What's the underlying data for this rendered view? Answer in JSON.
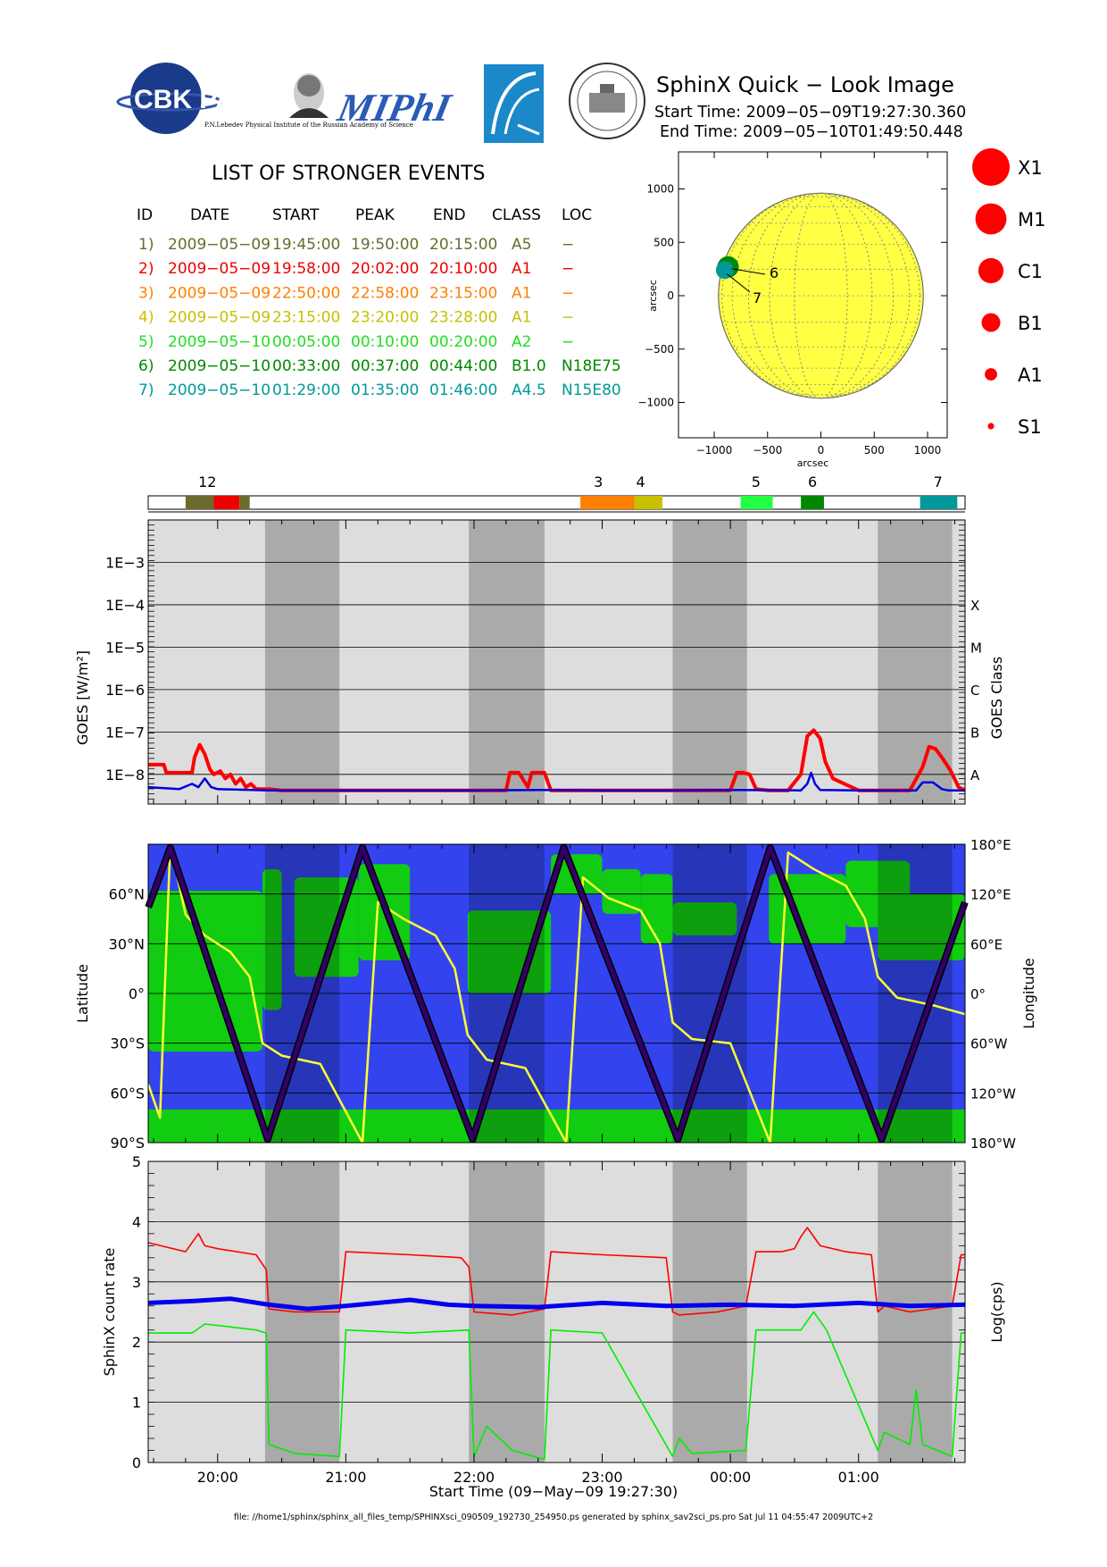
{
  "header": {
    "logos": [
      "CBK PAN",
      "P.N.Lebedev Physical Institute of the Russian Academy of Science",
      "MIPhI",
      "",
      ""
    ],
    "title": "SphinX Quick − Look Image",
    "start_time": "Start Time: 2009−05−09T19:27:30.360",
    "end_time": "End Time: 2009−05−10T01:49:50.448"
  },
  "events": {
    "heading": "LIST OF STRONGER EVENTS",
    "columns": [
      "ID",
      "DATE",
      "START",
      "PEAK",
      "END",
      "CLASS",
      "LOC"
    ],
    "rows": [
      {
        "id": "1)",
        "date": "2009−05−09",
        "start": "19:45:00",
        "peak": "19:50:00",
        "end": "20:15:00",
        "class": "A5",
        "loc": "−",
        "color": "#6b6b2e"
      },
      {
        "id": "2)",
        "date": "2009−05−09",
        "start": "19:58:00",
        "peak": "20:02:00",
        "end": "20:10:00",
        "class": "A1",
        "loc": "−",
        "color": "#ee0000"
      },
      {
        "id": "3)",
        "date": "2009−05−09",
        "start": "22:50:00",
        "peak": "22:58:00",
        "end": "23:15:00",
        "class": "A1",
        "loc": "−",
        "color": "#ff7f00"
      },
      {
        "id": "4)",
        "date": "2009−05−09",
        "start": "23:15:00",
        "peak": "23:20:00",
        "end": "23:28:00",
        "class": "A1",
        "loc": "−",
        "color": "#c8c000"
      },
      {
        "id": "5)",
        "date": "2009−05−10",
        "start": "00:05:00",
        "peak": "00:10:00",
        "end": "00:20:00",
        "class": "A2",
        "loc": "−",
        "color": "#22dd22"
      },
      {
        "id": "6)",
        "date": "2009−05−10",
        "start": "00:33:00",
        "peak": "00:37:00",
        "end": "00:44:00",
        "class": "B1.0",
        "loc": "N18E75",
        "color": "#008800"
      },
      {
        "id": "7)",
        "date": "2009−05−10",
        "start": "01:29:00",
        "peak": "01:35:00",
        "end": "01:46:00",
        "class": "A4.5",
        "loc": "N15E80",
        "color": "#009999"
      }
    ]
  },
  "sun_map": {
    "xlabel": "arcsec",
    "ylabel": "arcsec",
    "ticks": [
      -1000,
      -500,
      0,
      500,
      1000
    ],
    "tick_labels": [
      "−1000",
      "−500",
      "0",
      "500",
      "1000"
    ],
    "disk_color": "#ffff44",
    "markers": [
      {
        "label": "6",
        "x": -870,
        "y": 270,
        "color": "#008800"
      },
      {
        "label": "7",
        "x": -900,
        "y": 240,
        "color": "#009999"
      }
    ]
  },
  "size_legend": [
    {
      "label": "X1",
      "r": 1.0
    },
    {
      "label": "M1",
      "r": 0.83
    },
    {
      "label": "C1",
      "r": 0.67
    },
    {
      "label": "B1",
      "r": 0.5
    },
    {
      "label": "A1",
      "r": 0.33
    },
    {
      "label": "S1",
      "r": 0.17
    }
  ],
  "timeline": {
    "start_hours": 19.4583,
    "end_hours": 25.8306,
    "labels": [
      {
        "text": "12",
        "t": 19.92
      },
      {
        "text": "3",
        "t": 22.97
      },
      {
        "text": "4",
        "t": 23.3
      },
      {
        "text": "5",
        "t": 24.2
      },
      {
        "text": "6",
        "t": 24.64
      },
      {
        "text": "7",
        "t": 25.62
      }
    ],
    "bars": [
      {
        "t0": 19.75,
        "t1": 19.97,
        "color": "#6b6b2e"
      },
      {
        "t0": 19.97,
        "t1": 20.17,
        "color": "#ee0000"
      },
      {
        "t0": 20.17,
        "t1": 20.25,
        "color": "#6b6b2e"
      },
      {
        "t0": 22.83,
        "t1": 23.25,
        "color": "#ff7f00"
      },
      {
        "t0": 23.25,
        "t1": 23.47,
        "color": "#c8c000"
      },
      {
        "t0": 24.08,
        "t1": 24.33,
        "color": "#22ff44"
      },
      {
        "t0": 24.55,
        "t1": 24.73,
        "color": "#008800"
      },
      {
        "t0": 25.48,
        "t1": 25.77,
        "color": "#009999"
      }
    ]
  },
  "night_bands": [
    [
      20.37,
      20.95
    ],
    [
      21.96,
      22.55
    ],
    [
      23.55,
      24.13
    ],
    [
      25.15,
      25.73
    ]
  ],
  "chart_data": [
    {
      "type": "line",
      "title": "",
      "xlabel": "",
      "ylabel": "GOES [W/m²]",
      "y2label": "GOES Class",
      "y_scale": "log",
      "ylim": [
        2e-09,
        0.01
      ],
      "xlim_hours": [
        19.4583,
        25.8306
      ],
      "ytick_labels": [
        "1E−8",
        "1E−7",
        "1E−6",
        "1E−5",
        "1E−4",
        "1E−3"
      ],
      "ytick_values": [
        1e-08,
        1e-07,
        1e-06,
        1e-05,
        0.0001,
        0.001
      ],
      "class_labels": [
        {
          "text": "A",
          "value": 1e-08
        },
        {
          "text": "B",
          "value": 1e-07
        },
        {
          "text": "C",
          "value": 1e-06
        },
        {
          "text": "M",
          "value": 1e-05
        },
        {
          "text": "X",
          "value": 0.0001
        }
      ],
      "series": [
        {
          "color": "#ff0000",
          "x": [
            19.46,
            19.58,
            19.6,
            19.8,
            19.82,
            19.86,
            19.9,
            19.94,
            19.97,
            20.02,
            20.06,
            20.1,
            20.14,
            20.18,
            20.22,
            20.26,
            20.3,
            20.4,
            20.5,
            21.0,
            21.5,
            22.25,
            22.28,
            22.35,
            22.42,
            22.45,
            22.55,
            22.6,
            23.0,
            23.5,
            24.0,
            24.05,
            24.1,
            24.15,
            24.2,
            24.3,
            24.45,
            24.55,
            24.6,
            24.65,
            24.7,
            24.74,
            24.8,
            25.0,
            25.4,
            25.5,
            25.55,
            25.6,
            25.65,
            25.72,
            25.78,
            25.83
          ],
          "y": [
            1.7e-08,
            1.7e-08,
            1.1e-08,
            1.1e-08,
            2.5e-08,
            5e-08,
            3e-08,
            1.3e-08,
            1e-08,
            1.2e-08,
            8e-09,
            1e-08,
            6e-09,
            8e-09,
            5e-09,
            6e-09,
            4.5e-09,
            4.5e-09,
            4.2e-09,
            4.2e-09,
            4.2e-09,
            4.2e-09,
            1.1e-08,
            1.1e-08,
            5e-09,
            1.1e-08,
            1.1e-08,
            4.2e-09,
            4.2e-09,
            4.2e-09,
            4.2e-09,
            1.1e-08,
            1.1e-08,
            1e-08,
            4.5e-09,
            4.2e-09,
            4.2e-09,
            1e-08,
            8e-08,
            1.1e-07,
            7e-08,
            2e-08,
            8e-09,
            4.2e-09,
            4.2e-09,
            1.5e-08,
            4.5e-08,
            4e-08,
            2.5e-08,
            1.2e-08,
            5e-09,
            4.2e-09
          ]
        },
        {
          "color": "#0000dd",
          "x": [
            19.46,
            19.7,
            19.8,
            19.85,
            19.9,
            19.95,
            20.0,
            20.4,
            21.0,
            22.0,
            22.5,
            23.0,
            23.5,
            24.0,
            24.55,
            24.6,
            24.63,
            24.66,
            24.7,
            25.0,
            25.45,
            25.5,
            25.58,
            25.65,
            25.7,
            25.83
          ],
          "y": [
            5e-09,
            4.5e-09,
            6e-09,
            5e-09,
            8e-09,
            5e-09,
            4.5e-09,
            4.2e-09,
            4.2e-09,
            4.2e-09,
            4.3e-09,
            4.2e-09,
            4.2e-09,
            4.3e-09,
            4.2e-09,
            6e-09,
            1.1e-08,
            6e-09,
            4.3e-09,
            4.2e-09,
            4.2e-09,
            6.5e-09,
            6.5e-09,
            4.5e-09,
            4.2e-09,
            4.2e-09
          ]
        }
      ]
    },
    {
      "type": "line",
      "title": "",
      "xlabel": "",
      "ylabel": "Latitude",
      "y2label": "Longitude",
      "ylim": [
        -90,
        90
      ],
      "y2lim": [
        -180,
        180
      ],
      "xlim_hours": [
        19.4583,
        25.8306
      ],
      "ytick_labels": [
        "90°S",
        "60°S",
        "30°S",
        "0°",
        "30°N",
        "60°N"
      ],
      "ytick_values": [
        -90,
        -60,
        -30,
        0,
        30,
        60
      ],
      "y2tick_labels": [
        "180°W",
        "120°W",
        "60°W",
        "0°",
        "60°E",
        "120°E",
        "180°E"
      ],
      "y2tick_values": [
        -180,
        -120,
        -60,
        0,
        60,
        120,
        180
      ],
      "background_colors": {
        "ocean": "#3344ee",
        "land": "#11cc11",
        "night_ocean": "#2233bb",
        "night_land": "#119911"
      },
      "track": {
        "color": "#330066",
        "x": [
          19.46,
          19.63,
          20.39,
          21.13,
          21.99,
          22.7,
          23.59,
          24.31,
          25.18,
          25.83
        ],
        "y": [
          52,
          88,
          -88,
          88,
          -88,
          88,
          -88,
          88,
          -88,
          55
        ]
      },
      "longitude": {
        "color": "#ffff33",
        "x": [
          19.46,
          19.55,
          19.63,
          19.75,
          19.9,
          20.1,
          20.25,
          20.35,
          20.5,
          20.8,
          21.13,
          21.25,
          21.45,
          21.7,
          21.85,
          21.95,
          22.1,
          22.4,
          22.72,
          22.85,
          23.05,
          23.3,
          23.45,
          23.55,
          23.7,
          24.0,
          24.31,
          24.45,
          24.65,
          24.9,
          25.05,
          25.15,
          25.3,
          25.6,
          25.83
        ],
        "y": [
          -110,
          -150,
          180,
          95,
          70,
          50,
          20,
          -60,
          -75,
          -85,
          -180,
          110,
          90,
          70,
          30,
          -50,
          -80,
          -90,
          -180,
          140,
          115,
          100,
          60,
          -35,
          -55,
          -60,
          -180,
          170,
          150,
          130,
          90,
          20,
          -5,
          -15,
          -25
        ]
      }
    },
    {
      "type": "line",
      "title": "",
      "xlabel": "Start Time (09−May−09 19:27:30)",
      "ylabel": "SphinX count rate",
      "y2label": "Log(cps)",
      "ylim": [
        0,
        5
      ],
      "xlim_hours": [
        19.4583,
        25.8306
      ],
      "ytick_labels": [
        "0",
        "1",
        "2",
        "3",
        "4",
        "5"
      ],
      "ytick_values": [
        0,
        1,
        2,
        3,
        4,
        5
      ],
      "xtick_labels": [
        "20:00",
        "21:00",
        "22:00",
        "23:00",
        "00:00",
        "01:00"
      ],
      "xtick_values": [
        20,
        21,
        22,
        23,
        24,
        25
      ],
      "series": [
        {
          "color": "#ff0000",
          "x": [
            19.46,
            19.75,
            19.85,
            19.9,
            20.0,
            20.3,
            20.38,
            20.4,
            20.6,
            20.95,
            21.0,
            21.5,
            21.9,
            21.96,
            22.0,
            22.3,
            22.55,
            22.6,
            23.0,
            23.5,
            23.55,
            23.6,
            23.9,
            24.12,
            24.2,
            24.4,
            24.5,
            24.55,
            24.6,
            24.7,
            24.9,
            25.1,
            25.15,
            25.2,
            25.4,
            25.73,
            25.8,
            25.83
          ],
          "y": [
            3.65,
            3.5,
            3.8,
            3.6,
            3.55,
            3.45,
            3.2,
            2.55,
            2.5,
            2.5,
            3.5,
            3.45,
            3.4,
            3.25,
            2.5,
            2.45,
            2.55,
            3.5,
            3.45,
            3.4,
            2.5,
            2.45,
            2.5,
            2.6,
            3.5,
            3.5,
            3.55,
            3.75,
            3.9,
            3.6,
            3.5,
            3.45,
            2.5,
            2.6,
            2.5,
            2.6,
            3.45,
            3.45
          ]
        },
        {
          "color": "#0000ee",
          "x": [
            19.46,
            19.8,
            20.1,
            20.4,
            20.7,
            21.0,
            21.5,
            21.8,
            22.0,
            22.5,
            23.0,
            23.5,
            24.0,
            24.5,
            25.0,
            25.4,
            25.83
          ],
          "y": [
            2.65,
            2.68,
            2.72,
            2.62,
            2.55,
            2.6,
            2.7,
            2.62,
            2.6,
            2.58,
            2.65,
            2.6,
            2.62,
            2.6,
            2.65,
            2.6,
            2.62
          ]
        },
        {
          "color": "#00ee00",
          "x": [
            19.46,
            19.8,
            19.9,
            20.3,
            20.38,
            20.4,
            20.6,
            20.95,
            21.0,
            21.5,
            21.96,
            22.0,
            22.1,
            22.3,
            22.55,
            22.6,
            23.0,
            23.55,
            23.6,
            23.7,
            24.12,
            24.2,
            24.55,
            24.65,
            24.75,
            25.15,
            25.2,
            25.4,
            25.45,
            25.5,
            25.73,
            25.8,
            25.83
          ],
          "y": [
            2.15,
            2.15,
            2.3,
            2.2,
            2.15,
            0.3,
            0.15,
            0.1,
            2.2,
            2.15,
            2.2,
            0.1,
            0.6,
            0.2,
            0.05,
            2.2,
            2.15,
            0.1,
            0.4,
            0.15,
            0.2,
            2.2,
            2.2,
            2.5,
            2.2,
            0.2,
            0.5,
            0.3,
            1.2,
            0.3,
            0.1,
            2.15,
            2.15
          ]
        }
      ]
    }
  ],
  "footer": "file: //home1/sphinx/sphinx_all_files_temp/SPHINXsci_090509_192730_254950.ps generated by sphinx_sav2sci_ps.pro Sat Jul 11 04:55:47 2009UTC+2"
}
